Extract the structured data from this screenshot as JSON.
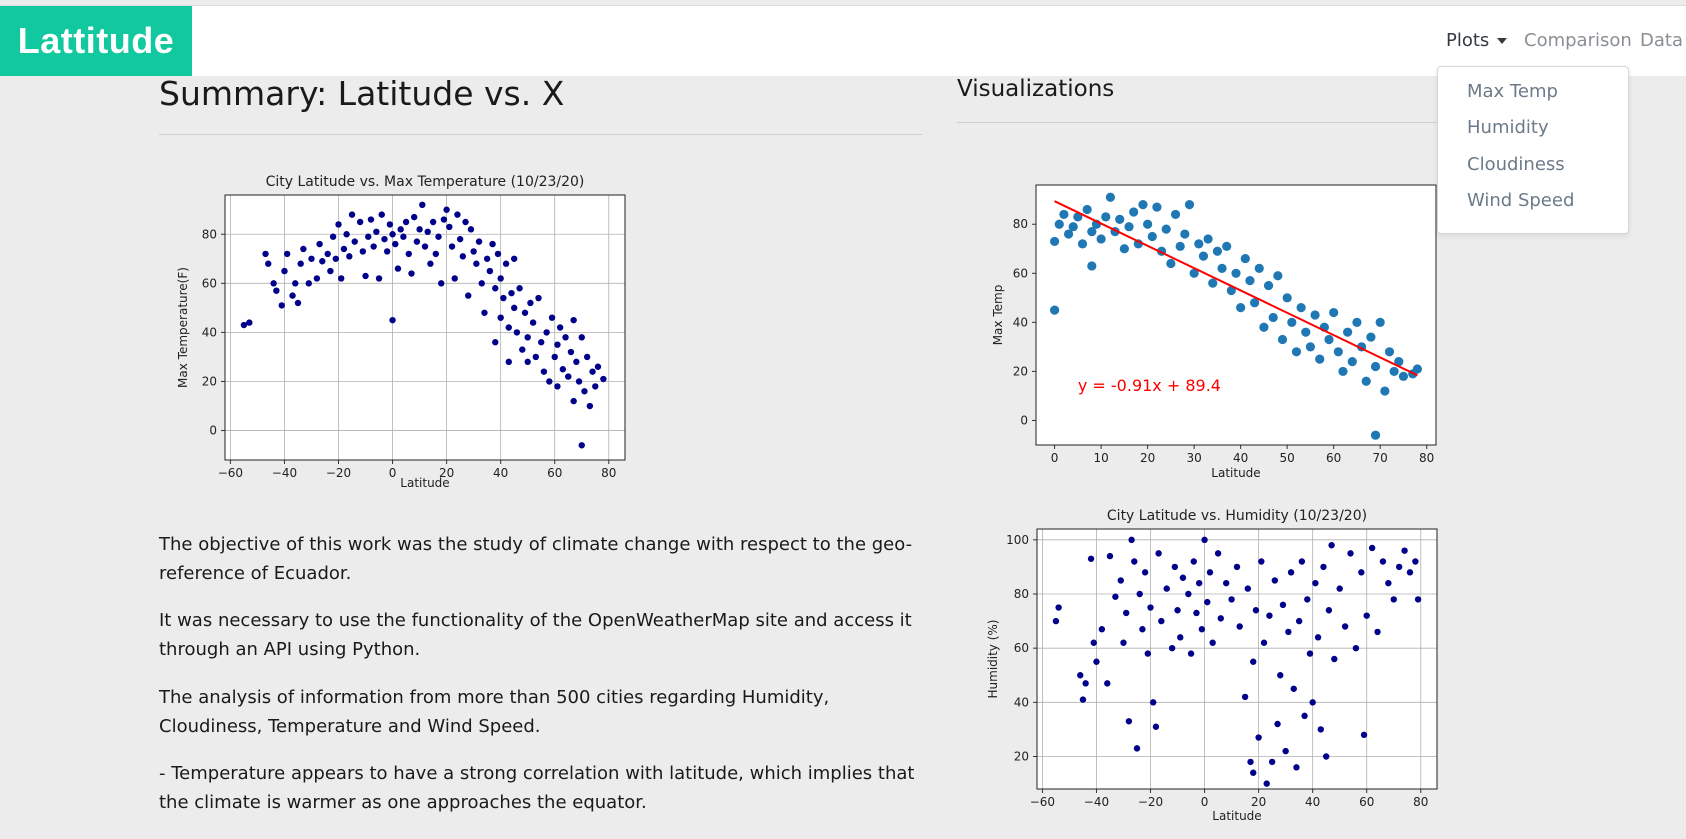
{
  "nav": {
    "brand": "Lattitude",
    "links": {
      "plots": "Plots",
      "comparison": "Comparison",
      "data": "Data"
    },
    "dropdown": [
      "Max Temp",
      "Humidity",
      "Cloudiness",
      "Wind Speed"
    ],
    "brand_color": "#12c89f"
  },
  "summary": {
    "title": "Summary: Latitude vs. X",
    "paragraphs": [
      "The objective of this work was the study of climate change with respect to the geo-reference of Ecuador.",
      "It was necessary to use the functionality of the OpenWeatherMap site and access it through an API using Python.",
      "The analysis of information from more than 500 cities regarding Humidity, Cloudiness, Temperature and Wind Speed.",
      "- Temperature appears to have a strong correlation with latitude, which implies that the climate is warmer as one approaches the equator."
    ]
  },
  "visualizations": {
    "title": "Visualizations"
  },
  "chart_data": [
    {
      "type": "scatter",
      "title": "City Latitude vs. Max Temperature (10/23/20)",
      "xlabel": "Latitude",
      "ylabel": "Max Temperature(F)",
      "xlim": [
        -62,
        86
      ],
      "ylim": [
        -12,
        96
      ],
      "xticks": [
        -60,
        -40,
        -20,
        0,
        20,
        40,
        60,
        80
      ],
      "yticks": [
        0,
        20,
        40,
        60,
        80
      ],
      "grid": true,
      "color": "#00008b",
      "points": [
        [
          -55,
          43
        ],
        [
          -53,
          44
        ],
        [
          -47,
          72
        ],
        [
          -46,
          68
        ],
        [
          -44,
          60
        ],
        [
          -43,
          57
        ],
        [
          -41,
          51
        ],
        [
          -40,
          65
        ],
        [
          -39,
          72
        ],
        [
          -37,
          55
        ],
        [
          -36,
          60
        ],
        [
          -35,
          52
        ],
        [
          -34,
          68
        ],
        [
          -33,
          74
        ],
        [
          -31,
          60
        ],
        [
          -30,
          70
        ],
        [
          -28,
          62
        ],
        [
          -27,
          76
        ],
        [
          -26,
          69
        ],
        [
          -24,
          72
        ],
        [
          -23,
          65
        ],
        [
          -22,
          79
        ],
        [
          -21,
          70
        ],
        [
          -20,
          84
        ],
        [
          -19,
          62
        ],
        [
          -18,
          74
        ],
        [
          -17,
          80
        ],
        [
          -16,
          71
        ],
        [
          -15,
          88
        ],
        [
          -14,
          77
        ],
        [
          -12,
          85
        ],
        [
          -11,
          73
        ],
        [
          -10,
          63
        ],
        [
          -9,
          79
        ],
        [
          -8,
          86
        ],
        [
          -7,
          75
        ],
        [
          -6,
          81
        ],
        [
          -5,
          62
        ],
        [
          -4,
          88
        ],
        [
          -3,
          78
        ],
        [
          -2,
          73
        ],
        [
          -1,
          84
        ],
        [
          0,
          45
        ],
        [
          0,
          80
        ],
        [
          1,
          76
        ],
        [
          2,
          66
        ],
        [
          3,
          82
        ],
        [
          4,
          79
        ],
        [
          5,
          85
        ],
        [
          6,
          72
        ],
        [
          7,
          64
        ],
        [
          8,
          87
        ],
        [
          9,
          77
        ],
        [
          10,
          82
        ],
        [
          11,
          92
        ],
        [
          12,
          75
        ],
        [
          13,
          81
        ],
        [
          14,
          68
        ],
        [
          15,
          85
        ],
        [
          16,
          72
        ],
        [
          17,
          79
        ],
        [
          18,
          60
        ],
        [
          19,
          86
        ],
        [
          20,
          90
        ],
        [
          21,
          83
        ],
        [
          22,
          75
        ],
        [
          23,
          62
        ],
        [
          24,
          88
        ],
        [
          25,
          78
        ],
        [
          26,
          71
        ],
        [
          27,
          85
        ],
        [
          28,
          55
        ],
        [
          29,
          82
        ],
        [
          30,
          73
        ],
        [
          31,
          68
        ],
        [
          32,
          77
        ],
        [
          33,
          60
        ],
        [
          34,
          48
        ],
        [
          35,
          70
        ],
        [
          36,
          65
        ],
        [
          37,
          76
        ],
        [
          38,
          36
        ],
        [
          38,
          58
        ],
        [
          39,
          72
        ],
        [
          40,
          46
        ],
        [
          40,
          62
        ],
        [
          41,
          54
        ],
        [
          42,
          68
        ],
        [
          43,
          42
        ],
        [
          43,
          28
        ],
        [
          44,
          56
        ],
        [
          45,
          50
        ],
        [
          45,
          70
        ],
        [
          46,
          40
        ],
        [
          47,
          58
        ],
        [
          48,
          33
        ],
        [
          49,
          48
        ],
        [
          50,
          38
        ],
        [
          50,
          28
        ],
        [
          51,
          52
        ],
        [
          52,
          44
        ],
        [
          53,
          30
        ],
        [
          54,
          54
        ],
        [
          55,
          36
        ],
        [
          56,
          24
        ],
        [
          57,
          40
        ],
        [
          58,
          20
        ],
        [
          59,
          46
        ],
        [
          60,
          30
        ],
        [
          61,
          35
        ],
        [
          61,
          18
        ],
        [
          62,
          42
        ],
        [
          63,
          25
        ],
        [
          64,
          38
        ],
        [
          65,
          22
        ],
        [
          66,
          32
        ],
        [
          67,
          12
        ],
        [
          67,
          45
        ],
        [
          68,
          28
        ],
        [
          69,
          20
        ],
        [
          70,
          -6
        ],
        [
          70,
          38
        ],
        [
          71,
          16
        ],
        [
          72,
          30
        ],
        [
          73,
          10
        ],
        [
          74,
          24
        ],
        [
          75,
          18
        ],
        [
          76,
          26
        ],
        [
          78,
          21
        ]
      ]
    },
    {
      "type": "scatter",
      "ylabel": "Max Temp",
      "xlabel": "Latitude",
      "xlim": [
        -4,
        82
      ],
      "ylim": [
        -10,
        96
      ],
      "xticks": [
        0,
        10,
        20,
        30,
        40,
        50,
        60,
        70,
        80
      ],
      "yticks": [
        0,
        20,
        40,
        60,
        80
      ],
      "grid": false,
      "color": "#1f77b4",
      "regression": {
        "slope": -0.91,
        "intercept": 89.4,
        "x_range": [
          0,
          78
        ],
        "color": "#ff0000",
        "label": "y = -0.91x + 89.4"
      },
      "points": [
        [
          0,
          73
        ],
        [
          0,
          45
        ],
        [
          1,
          80
        ],
        [
          2,
          84
        ],
        [
          3,
          76
        ],
        [
          4,
          79
        ],
        [
          5,
          83
        ],
        [
          6,
          72
        ],
        [
          7,
          86
        ],
        [
          8,
          77
        ],
        [
          8,
          63
        ],
        [
          9,
          80
        ],
        [
          10,
          74
        ],
        [
          11,
          83
        ],
        [
          12,
          91
        ],
        [
          13,
          77
        ],
        [
          14,
          82
        ],
        [
          15,
          70
        ],
        [
          16,
          79
        ],
        [
          17,
          85
        ],
        [
          18,
          72
        ],
        [
          19,
          88
        ],
        [
          20,
          80
        ],
        [
          21,
          75
        ],
        [
          22,
          87
        ],
        [
          23,
          69
        ],
        [
          24,
          78
        ],
        [
          25,
          64
        ],
        [
          26,
          84
        ],
        [
          27,
          71
        ],
        [
          28,
          76
        ],
        [
          29,
          88
        ],
        [
          30,
          60
        ],
        [
          31,
          72
        ],
        [
          32,
          67
        ],
        [
          33,
          74
        ],
        [
          34,
          56
        ],
        [
          35,
          69
        ],
        [
          36,
          62
        ],
        [
          37,
          71
        ],
        [
          38,
          53
        ],
        [
          39,
          60
        ],
        [
          40,
          46
        ],
        [
          41,
          66
        ],
        [
          42,
          57
        ],
        [
          43,
          48
        ],
        [
          44,
          62
        ],
        [
          45,
          38
        ],
        [
          46,
          55
        ],
        [
          47,
          42
        ],
        [
          48,
          59
        ],
        [
          49,
          33
        ],
        [
          50,
          50
        ],
        [
          51,
          40
        ],
        [
          52,
          28
        ],
        [
          53,
          46
        ],
        [
          54,
          36
        ],
        [
          55,
          30
        ],
        [
          56,
          43
        ],
        [
          57,
          25
        ],
        [
          58,
          38
        ],
        [
          59,
          33
        ],
        [
          60,
          44
        ],
        [
          61,
          28
        ],
        [
          62,
          20
        ],
        [
          63,
          36
        ],
        [
          64,
          24
        ],
        [
          65,
          40
        ],
        [
          66,
          30
        ],
        [
          67,
          16
        ],
        [
          68,
          34
        ],
        [
          69,
          22
        ],
        [
          69,
          -6
        ],
        [
          70,
          40
        ],
        [
          71,
          12
        ],
        [
          72,
          28
        ],
        [
          73,
          20
        ],
        [
          74,
          24
        ],
        [
          75,
          18
        ],
        [
          77,
          19
        ],
        [
          78,
          21
        ]
      ]
    },
    {
      "type": "scatter",
      "title": "City Latitude vs. Humidity (10/23/20)",
      "xlabel": "Latitude",
      "ylabel": "Humidity (%)",
      "xlim": [
        -62,
        86
      ],
      "ylim": [
        8,
        104
      ],
      "xticks": [
        -60,
        -40,
        -20,
        0,
        20,
        40,
        60,
        80
      ],
      "yticks": [
        20,
        40,
        60,
        80,
        100
      ],
      "grid": true,
      "color": "#00008b",
      "points": [
        [
          -55,
          70
        ],
        [
          -54,
          75
        ],
        [
          -46,
          50
        ],
        [
          -45,
          41
        ],
        [
          -44,
          47
        ],
        [
          -42,
          93
        ],
        [
          -41,
          62
        ],
        [
          -40,
          55
        ],
        [
          -38,
          67
        ],
        [
          -36,
          47
        ],
        [
          -35,
          94
        ],
        [
          -33,
          79
        ],
        [
          -31,
          85
        ],
        [
          -30,
          62
        ],
        [
          -29,
          73
        ],
        [
          -28,
          33
        ],
        [
          -27,
          100
        ],
        [
          -26,
          92
        ],
        [
          -25,
          23
        ],
        [
          -24,
          80
        ],
        [
          -23,
          67
        ],
        [
          -22,
          88
        ],
        [
          -21,
          58
        ],
        [
          -20,
          75
        ],
        [
          -19,
          40
        ],
        [
          -18,
          31
        ],
        [
          -17,
          95
        ],
        [
          -16,
          70
        ],
        [
          -14,
          82
        ],
        [
          -12,
          60
        ],
        [
          -11,
          90
        ],
        [
          -10,
          74
        ],
        [
          -9,
          64
        ],
        [
          -8,
          86
        ],
        [
          -6,
          80
        ],
        [
          -5,
          58
        ],
        [
          -4,
          92
        ],
        [
          -3,
          73
        ],
        [
          -2,
          84
        ],
        [
          -1,
          67
        ],
        [
          0,
          100
        ],
        [
          1,
          77
        ],
        [
          2,
          88
        ],
        [
          3,
          62
        ],
        [
          5,
          95
        ],
        [
          6,
          71
        ],
        [
          8,
          84
        ],
        [
          10,
          78
        ],
        [
          12,
          90
        ],
        [
          13,
          68
        ],
        [
          15,
          42
        ],
        [
          16,
          82
        ],
        [
          17,
          18
        ],
        [
          18,
          14
        ],
        [
          18,
          55
        ],
        [
          19,
          74
        ],
        [
          20,
          27
        ],
        [
          21,
          92
        ],
        [
          22,
          62
        ],
        [
          23,
          10
        ],
        [
          24,
          72
        ],
        [
          25,
          18
        ],
        [
          26,
          85
        ],
        [
          27,
          32
        ],
        [
          28,
          50
        ],
        [
          29,
          76
        ],
        [
          30,
          22
        ],
        [
          31,
          66
        ],
        [
          32,
          88
        ],
        [
          33,
          45
        ],
        [
          34,
          16
        ],
        [
          35,
          70
        ],
        [
          36,
          92
        ],
        [
          37,
          35
        ],
        [
          38,
          78
        ],
        [
          39,
          58
        ],
        [
          40,
          40
        ],
        [
          41,
          84
        ],
        [
          42,
          64
        ],
        [
          43,
          30
        ],
        [
          44,
          90
        ],
        [
          45,
          20
        ],
        [
          46,
          74
        ],
        [
          47,
          98
        ],
        [
          48,
          56
        ],
        [
          50,
          82
        ],
        [
          52,
          68
        ],
        [
          54,
          95
        ],
        [
          56,
          60
        ],
        [
          58,
          88
        ],
        [
          59,
          28
        ],
        [
          60,
          72
        ],
        [
          62,
          97
        ],
        [
          64,
          66
        ],
        [
          66,
          92
        ],
        [
          68,
          84
        ],
        [
          70,
          78
        ],
        [
          72,
          90
        ],
        [
          74,
          96
        ],
        [
          76,
          88
        ],
        [
          78,
          92
        ],
        [
          79,
          78
        ]
      ]
    }
  ]
}
